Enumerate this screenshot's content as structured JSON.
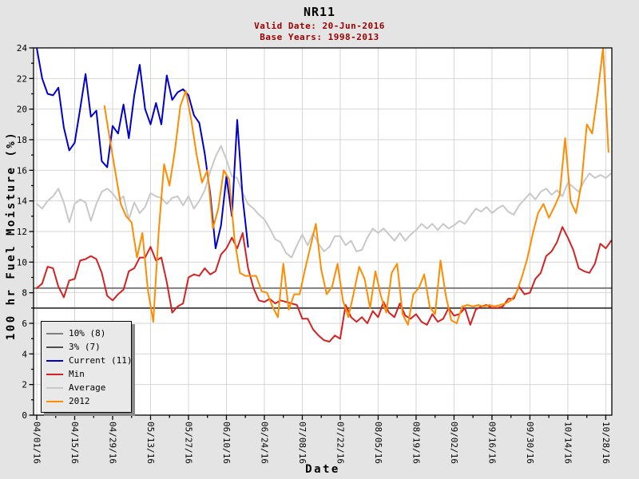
{
  "title": "NR11",
  "subtitle": {
    "valid_date": "Valid Date: 20-Jun-2016",
    "base_years": "Base Years: 1998-2013"
  },
  "colors": {
    "page_background": "#e4e4e4",
    "plot_background": "#ffffff",
    "grid": "#d6d6d6",
    "frame": "#000000",
    "subtitle_text": "#990000",
    "ref_10pct": "#7f7f7f",
    "ref_3pct": "#4d4d4d",
    "current": "#0000cc",
    "min": "#d42222",
    "average": "#c8c8c8",
    "year_2012": "#ff8c00",
    "legend_background": "#e9e9e9",
    "legend_shadow": "#8a8a8a"
  },
  "legend": {
    "entries": [
      {
        "label": "10% (8)",
        "color": "#7f7f7f"
      },
      {
        "label": "3% (7)",
        "color": "#4d4d4d"
      },
      {
        "label": "Current (11)",
        "color": "#0000cc"
      },
      {
        "label": "Min",
        "color": "#d42222"
      },
      {
        "label": "Average",
        "color": "#c8c8c8"
      },
      {
        "label": "2012",
        "color": "#ff8c00"
      }
    ]
  },
  "chart_data": {
    "type": "line",
    "title": "NR11",
    "annotations": [
      "Valid Date: 20-Jun-2016",
      "Base Years: 1998-2013"
    ],
    "xlabel": "Date",
    "ylabel": "100 hr Fuel Moisture (%)",
    "ylim": [
      0,
      24
    ],
    "y_major_step": 2,
    "y_minor_step": 1,
    "grid": true,
    "legend_position": "bottom-left",
    "x_tick_labels": [
      "04/01/16",
      "04/15/16",
      "04/29/16",
      "05/13/16",
      "05/27/16",
      "06/10/16",
      "06/24/16",
      "07/08/16",
      "07/22/16",
      "08/05/16",
      "08/19/16",
      "09/02/16",
      "09/16/16",
      "09/30/16",
      "10/14/16",
      "10/28/16"
    ],
    "x_tick_days": [
      0,
      14,
      28,
      42,
      56,
      70,
      84,
      98,
      112,
      126,
      140,
      154,
      168,
      182,
      196,
      210
    ],
    "x_total_days": 213,
    "reference_lines": [
      {
        "name": "10% (8)",
        "value": 8.3,
        "color": "#7f7f7f"
      },
      {
        "name": "3% (7)",
        "value": 7.0,
        "color": "#4d4d4d"
      }
    ],
    "series": [
      {
        "name": "Current (11)",
        "color": "#0000cc",
        "start_day": 0,
        "step_days": 2,
        "values": [
          24.0,
          22.0,
          21.0,
          20.9,
          21.4,
          18.8,
          17.3,
          17.8,
          20.0,
          22.3,
          19.5,
          19.9,
          16.6,
          16.2,
          18.9,
          18.4,
          20.3,
          18.1,
          20.9,
          22.9,
          20.0,
          19.0,
          20.4,
          19.0,
          22.2,
          20.6,
          21.1,
          21.3,
          20.9,
          19.6,
          19.1,
          17.1,
          14.5,
          10.9,
          12.4,
          15.6,
          13.0,
          19.3,
          14.2,
          11.0
        ]
      },
      {
        "name": "Min",
        "color": "#d42222",
        "start_day": 0,
        "step_days": 2,
        "values": [
          8.3,
          8.6,
          9.7,
          9.6,
          8.4,
          7.7,
          8.8,
          8.9,
          10.1,
          10.2,
          10.4,
          10.2,
          9.3,
          7.8,
          7.5,
          7.9,
          8.2,
          9.4,
          9.6,
          10.3,
          10.3,
          11.0,
          10.1,
          10.3,
          8.7,
          6.7,
          7.1,
          7.3,
          9.0,
          9.2,
          9.1,
          9.6,
          9.2,
          9.4,
          10.5,
          10.9,
          11.6,
          10.9,
          11.9,
          9.6,
          8.3,
          7.5,
          7.4,
          7.6,
          7.3,
          7.5,
          7.4,
          7.3,
          7.2,
          6.3,
          6.3,
          5.6,
          5.2,
          4.9,
          4.8,
          5.2,
          5.0,
          7.2,
          6.4,
          6.1,
          6.4,
          6.0,
          6.8,
          6.4,
          7.4,
          6.7,
          6.4,
          7.3,
          6.5,
          6.3,
          6.6,
          6.1,
          5.9,
          6.6,
          6.1,
          6.3,
          7.0,
          6.5,
          6.6,
          7.0,
          5.9,
          6.9,
          7.1,
          7.2,
          7.0,
          7.0,
          7.1,
          7.6,
          7.6,
          8.4,
          7.9,
          8.0,
          8.9,
          9.3,
          10.4,
          10.7,
          11.3,
          12.3,
          11.6,
          10.8,
          9.6,
          9.4,
          9.3,
          9.9,
          11.2,
          10.9,
          11.4
        ]
      },
      {
        "name": "Average",
        "color": "#c8c8c8",
        "start_day": 0,
        "step_days": 2,
        "values": [
          13.8,
          13.5,
          14.0,
          14.3,
          14.8,
          13.9,
          12.6,
          13.8,
          14.1,
          13.9,
          12.7,
          13.8,
          14.6,
          14.8,
          14.5,
          14.0,
          14.3,
          12.8,
          13.9,
          13.2,
          13.6,
          14.5,
          14.3,
          14.2,
          13.8,
          14.2,
          14.3,
          13.7,
          14.3,
          13.5,
          14.0,
          14.7,
          15.9,
          16.9,
          17.6,
          16.7,
          15.6,
          15.5,
          14.5,
          13.8,
          13.5,
          13.1,
          12.8,
          12.2,
          11.5,
          11.3,
          10.6,
          10.3,
          11.1,
          11.8,
          11.1,
          11.9,
          11.2,
          10.7,
          11.0,
          11.7,
          11.7,
          11.1,
          11.4,
          10.7,
          10.8,
          11.6,
          12.2,
          11.9,
          12.2,
          11.8,
          11.4,
          11.9,
          11.4,
          11.8,
          12.1,
          12.5,
          12.2,
          12.5,
          12.1,
          12.5,
          12.2,
          12.4,
          12.7,
          12.5,
          13.0,
          13.5,
          13.3,
          13.6,
          13.2,
          13.5,
          13.7,
          13.3,
          13.1,
          13.7,
          14.1,
          14.5,
          14.1,
          14.6,
          14.8,
          14.4,
          14.7,
          14.3,
          15.2,
          14.9,
          14.6,
          15.3,
          15.8,
          15.5,
          15.7,
          15.5,
          15.8
        ]
      },
      {
        "name": "2012",
        "color": "#ff8c00",
        "start_day": 25,
        "step_days": 2,
        "values": [
          20.2,
          18.0,
          15.9,
          13.8,
          13.0,
          12.6,
          10.3,
          11.9,
          8.2,
          6.1,
          12.0,
          16.4,
          15.0,
          17.3,
          20.2,
          21.2,
          19.3,
          17.0,
          15.2,
          16.0,
          12.2,
          13.5,
          16.0,
          15.4,
          11.5,
          9.3,
          9.1,
          9.1,
          9.1,
          8.1,
          8.0,
          7.1,
          6.4,
          9.9,
          6.9,
          7.9,
          7.9,
          9.5,
          11.0,
          12.5,
          9.5,
          7.9,
          8.4,
          9.9,
          7.5,
          6.4,
          8.0,
          9.7,
          8.9,
          7.0,
          9.4,
          7.8,
          6.7,
          9.3,
          9.9,
          6.6,
          5.9,
          7.9,
          8.3,
          9.2,
          7.1,
          6.6,
          10.1,
          7.8,
          6.2,
          6.0,
          7.1,
          7.2,
          7.1,
          7.2,
          7.1,
          7.2,
          7.1,
          7.2,
          7.3,
          7.5,
          8.0,
          9.0,
          10.2,
          11.8,
          13.2,
          13.8,
          12.9,
          13.6,
          14.4,
          18.1,
          14.0,
          13.2,
          15.1,
          19.0,
          18.4,
          21.0,
          24.0,
          17.2
        ]
      }
    ]
  }
}
